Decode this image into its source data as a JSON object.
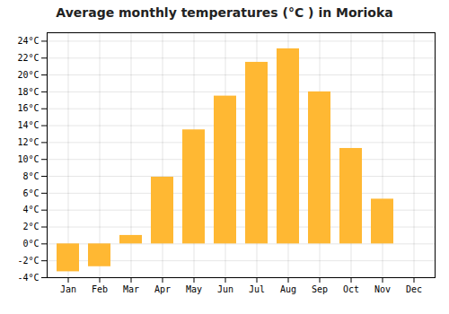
{
  "chart_data": {
    "type": "bar",
    "title": "Average monthly temperatures (°C ) in Morioka",
    "categories": [
      "Jan",
      "Feb",
      "Mar",
      "Apr",
      "May",
      "Jun",
      "Jul",
      "Aug",
      "Sep",
      "Oct",
      "Nov",
      "Dec"
    ],
    "values": [
      -3.3,
      -2.7,
      1.0,
      7.9,
      13.5,
      17.5,
      21.5,
      23.1,
      18.0,
      11.3,
      5.3,
      0.0
    ],
    "color": "#FFB833",
    "ylim": [
      -4,
      25
    ],
    "yticks": [
      {
        "value": -4,
        "label": "-4°C"
      },
      {
        "value": -2,
        "label": "-2°C"
      },
      {
        "value": 0,
        "label": "0°C"
      },
      {
        "value": 2,
        "label": "2°C"
      },
      {
        "value": 4,
        "label": "4°C"
      },
      {
        "value": 6,
        "label": "6°C"
      },
      {
        "value": 8,
        "label": "8°C"
      },
      {
        "value": 10,
        "label": "10°C"
      },
      {
        "value": 12,
        "label": "12°C"
      },
      {
        "value": 14,
        "label": "14°C"
      },
      {
        "value": 16,
        "label": "16°C"
      },
      {
        "value": 18,
        "label": "18°C"
      },
      {
        "value": 20,
        "label": "20°C"
      },
      {
        "value": 22,
        "label": "22°C"
      },
      {
        "value": 24,
        "label": "24°C"
      }
    ],
    "grid": true
  }
}
